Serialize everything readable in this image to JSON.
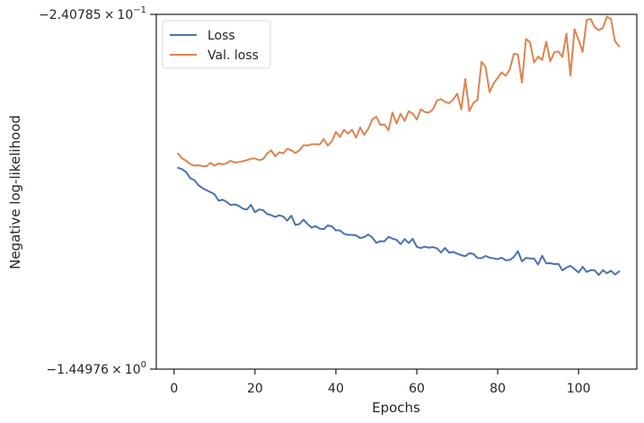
{
  "chart_data": {
    "type": "line",
    "title": "",
    "xlabel": "Epochs",
    "ylabel": "Negative log-likelihood",
    "xlim": [
      -4.4,
      114.4
    ],
    "xticks": [
      0,
      20,
      40,
      60,
      80,
      100
    ],
    "xtick_labels": [
      "0",
      "20",
      "40",
      "60",
      "80",
      "100"
    ],
    "yscale": "log",
    "ytick_labels": {
      "top": {
        "mantissa": "−2.40785",
        "times": "×",
        "base": "10",
        "exp": "−1"
      },
      "bottom": {
        "mantissa": "−1.44976",
        "times": "×",
        "base": "10",
        "exp": "0"
      }
    },
    "grid": false,
    "legend_position": "upper left",
    "series": [
      {
        "name": "Loss",
        "color": "#4c72b0",
        "x": [
          1,
          2,
          3,
          4,
          5,
          6,
          7,
          8,
          9,
          10,
          11,
          12,
          13,
          14,
          15,
          16,
          17,
          18,
          19,
          20,
          21,
          22,
          23,
          24,
          25,
          26,
          27,
          28,
          29,
          30,
          31,
          32,
          33,
          34,
          35,
          36,
          37,
          38,
          39,
          40,
          41,
          42,
          43,
          44,
          45,
          46,
          47,
          48,
          49,
          50,
          51,
          52,
          53,
          54,
          55,
          56,
          57,
          58,
          59,
          60,
          61,
          62,
          63,
          64,
          65,
          66,
          67,
          68,
          69,
          70,
          71,
          72,
          73,
          74,
          75,
          76,
          77,
          78,
          79,
          80,
          81,
          82,
          83,
          84,
          85,
          86,
          87,
          88,
          89,
          90,
          91,
          92,
          93,
          94,
          95,
          96,
          97,
          98,
          99,
          100,
          101,
          102,
          103,
          104,
          105,
          106,
          107,
          108,
          109,
          110
        ],
        "y": [
          -0.5234,
          -0.5271,
          -0.5351,
          -0.5519,
          -0.5567,
          -0.5715,
          -0.5797,
          -0.5862,
          -0.5922,
          -0.5983,
          -0.6179,
          -0.6151,
          -0.6217,
          -0.6323,
          -0.6298,
          -0.6345,
          -0.6437,
          -0.6466,
          -0.6311,
          -0.6555,
          -0.6463,
          -0.6485,
          -0.6611,
          -0.665,
          -0.6711,
          -0.6656,
          -0.6698,
          -0.6838,
          -0.6668,
          -0.6992,
          -0.6954,
          -0.6803,
          -0.6959,
          -0.7083,
          -0.7034,
          -0.7123,
          -0.7142,
          -0.7004,
          -0.7037,
          -0.7184,
          -0.7185,
          -0.7309,
          -0.735,
          -0.735,
          -0.7371,
          -0.7466,
          -0.7434,
          -0.7337,
          -0.7445,
          -0.7652,
          -0.7587,
          -0.7593,
          -0.7424,
          -0.7489,
          -0.7536,
          -0.7703,
          -0.7507,
          -0.7662,
          -0.7497,
          -0.7805,
          -0.7857,
          -0.7802,
          -0.7841,
          -0.7816,
          -0.7869,
          -0.8035,
          -0.7851,
          -0.8043,
          -0.8012,
          -0.8081,
          -0.8145,
          -0.8186,
          -0.8063,
          -0.8094,
          -0.826,
          -0.827,
          -0.8176,
          -0.8248,
          -0.8278,
          -0.8311,
          -0.8247,
          -0.8362,
          -0.8343,
          -0.8222,
          -0.7981,
          -0.8404,
          -0.8256,
          -0.828,
          -0.829,
          -0.8542,
          -0.8166,
          -0.8487,
          -0.848,
          -0.8522,
          -0.8507,
          -0.8795,
          -0.867,
          -0.8595,
          -0.8737,
          -0.8895,
          -0.8636,
          -0.8869,
          -0.8786,
          -0.8798,
          -0.9004,
          -0.8788,
          -0.8923,
          -0.8812,
          -0.8983,
          -0.8846
        ]
      },
      {
        "name": "Val. loss",
        "color": "#dd8452",
        "x": [
          1,
          2,
          3,
          4,
          5,
          6,
          7,
          8,
          9,
          10,
          11,
          12,
          13,
          14,
          15,
          16,
          17,
          18,
          19,
          20,
          21,
          22,
          23,
          24,
          25,
          26,
          27,
          28,
          29,
          30,
          31,
          32,
          33,
          34,
          35,
          36,
          37,
          38,
          39,
          40,
          41,
          42,
          43,
          44,
          45,
          46,
          47,
          48,
          49,
          50,
          51,
          52,
          53,
          54,
          55,
          56,
          57,
          58,
          59,
          60,
          61,
          62,
          63,
          64,
          65,
          66,
          67,
          68,
          69,
          70,
          71,
          72,
          73,
          74,
          75,
          76,
          77,
          78,
          79,
          80,
          81,
          82,
          83,
          84,
          85,
          86,
          87,
          88,
          89,
          90,
          91,
          92,
          93,
          94,
          95,
          96,
          97,
          98,
          99,
          100,
          101,
          102,
          103,
          104,
          105,
          106,
          107,
          108,
          109,
          110
        ],
        "y": [
          -0.4873,
          -0.4995,
          -0.5052,
          -0.5136,
          -0.5178,
          -0.5166,
          -0.5189,
          -0.5193,
          -0.5102,
          -0.5179,
          -0.5121,
          -0.5145,
          -0.5112,
          -0.5051,
          -0.5097,
          -0.5084,
          -0.5062,
          -0.5037,
          -0.4999,
          -0.4991,
          -0.5035,
          -0.5008,
          -0.4869,
          -0.4793,
          -0.4939,
          -0.4838,
          -0.4865,
          -0.4755,
          -0.4791,
          -0.4855,
          -0.4791,
          -0.4667,
          -0.4675,
          -0.4645,
          -0.4645,
          -0.4651,
          -0.4523,
          -0.4677,
          -0.4578,
          -0.4362,
          -0.4479,
          -0.4318,
          -0.4402,
          -0.4316,
          -0.4494,
          -0.4268,
          -0.4431,
          -0.4298,
          -0.41,
          -0.4039,
          -0.4213,
          -0.4203,
          -0.4328,
          -0.3957,
          -0.4184,
          -0.3981,
          -0.4131,
          -0.3931,
          -0.3978,
          -0.4098,
          -0.3892,
          -0.3946,
          -0.3959,
          -0.3892,
          -0.3723,
          -0.3698,
          -0.375,
          -0.3774,
          -0.3705,
          -0.3595,
          -0.3898,
          -0.3339,
          -0.3928,
          -0.3772,
          -0.3714,
          -0.3061,
          -0.314,
          -0.3571,
          -0.3418,
          -0.332,
          -0.323,
          -0.3286,
          -0.3179,
          -0.2941,
          -0.2949,
          -0.3401,
          -0.2726,
          -0.2774,
          -0.3071,
          -0.2982,
          -0.3034,
          -0.2765,
          -0.3055,
          -0.2916,
          -0.2905,
          -0.2987,
          -0.2656,
          -0.3283,
          -0.2595,
          -0.2739,
          -0.2911,
          -0.2474,
          -0.2466,
          -0.2571,
          -0.2608,
          -0.258,
          -0.2435,
          -0.2464,
          -0.2758,
          -0.2831
        ]
      }
    ]
  }
}
